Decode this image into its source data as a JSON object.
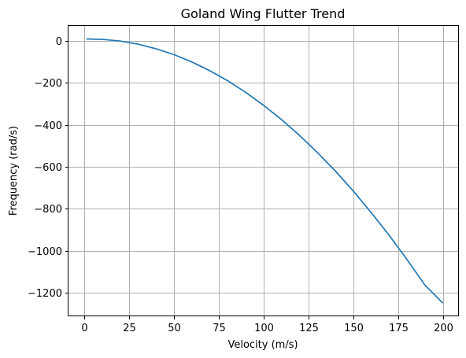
{
  "chart_data": {
    "type": "line",
    "title": "Goland Wing Flutter Trend",
    "xlabel": "Velocity (m/s)",
    "ylabel": "Frequency (rad/s)",
    "xlim": [
      -9,
      209
    ],
    "ylim": [
      -1313,
      72
    ],
    "x_ticks": [
      0,
      25,
      50,
      75,
      100,
      125,
      150,
      175,
      200
    ],
    "y_ticks": [
      0,
      -200,
      -400,
      -600,
      -800,
      -1000,
      -1200
    ],
    "grid": true,
    "series": [
      {
        "color": "#1f77b4",
        "x": [
          1,
          10,
          20,
          30,
          40,
          50,
          60,
          70,
          80,
          90,
          100,
          110,
          120,
          130,
          140,
          150,
          160,
          170,
          180,
          190,
          200
        ],
        "y": [
          10,
          8,
          0,
          -15,
          -37,
          -65,
          -100,
          -142,
          -190,
          -245,
          -307,
          -375,
          -450,
          -532,
          -620,
          -715,
          -818,
          -926,
          -1042,
          -1164,
          -1250
        ]
      }
    ]
  }
}
